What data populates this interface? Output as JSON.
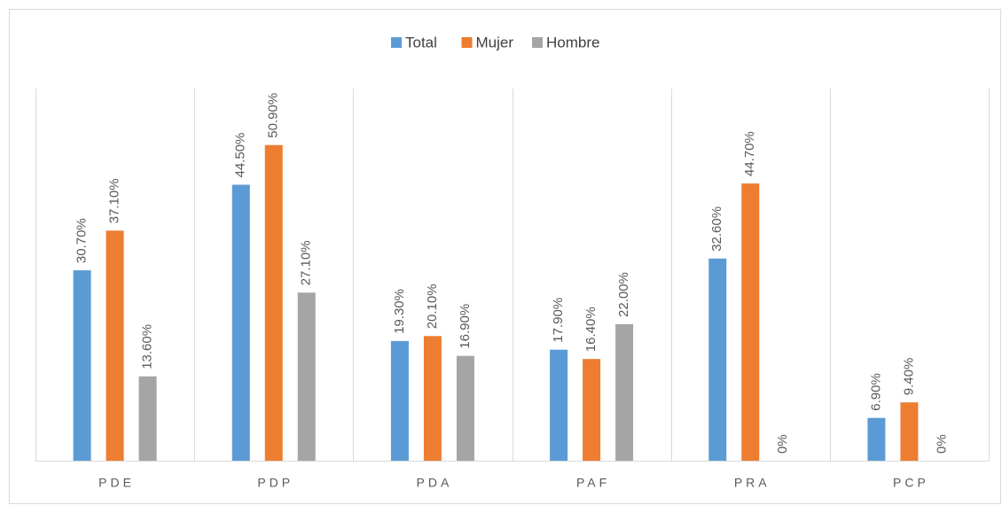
{
  "chart_data": {
    "type": "bar",
    "categories": [
      "PDE",
      "PDP",
      "PDA",
      "PAF",
      "PRA",
      "PCP"
    ],
    "series": [
      {
        "name": "Total",
        "color": "#5b9bd5",
        "values": [
          30.7,
          44.5,
          19.3,
          17.9,
          32.6,
          6.9
        ],
        "value_labels": [
          "30.70%",
          "44.50%",
          "19.30%",
          "17.90%",
          "32.60%",
          "6.90%"
        ]
      },
      {
        "name": "Mujer",
        "color": "#ed7d31",
        "values": [
          37.1,
          50.9,
          20.1,
          16.4,
          44.7,
          9.4
        ],
        "value_labels": [
          "37.10%",
          "50.90%",
          "20.10%",
          "16.40%",
          "44.70%",
          "9.40%"
        ]
      },
      {
        "name": "Hombre",
        "color": "#a5a5a5",
        "values": [
          13.6,
          27.1,
          16.9,
          22.0,
          0,
          0
        ],
        "value_labels": [
          "13.60%",
          "27.10%",
          "16.90%",
          "22.00%",
          "0%",
          "0%"
        ]
      }
    ],
    "ylim": [
      0,
      60
    ],
    "legend": "top"
  }
}
